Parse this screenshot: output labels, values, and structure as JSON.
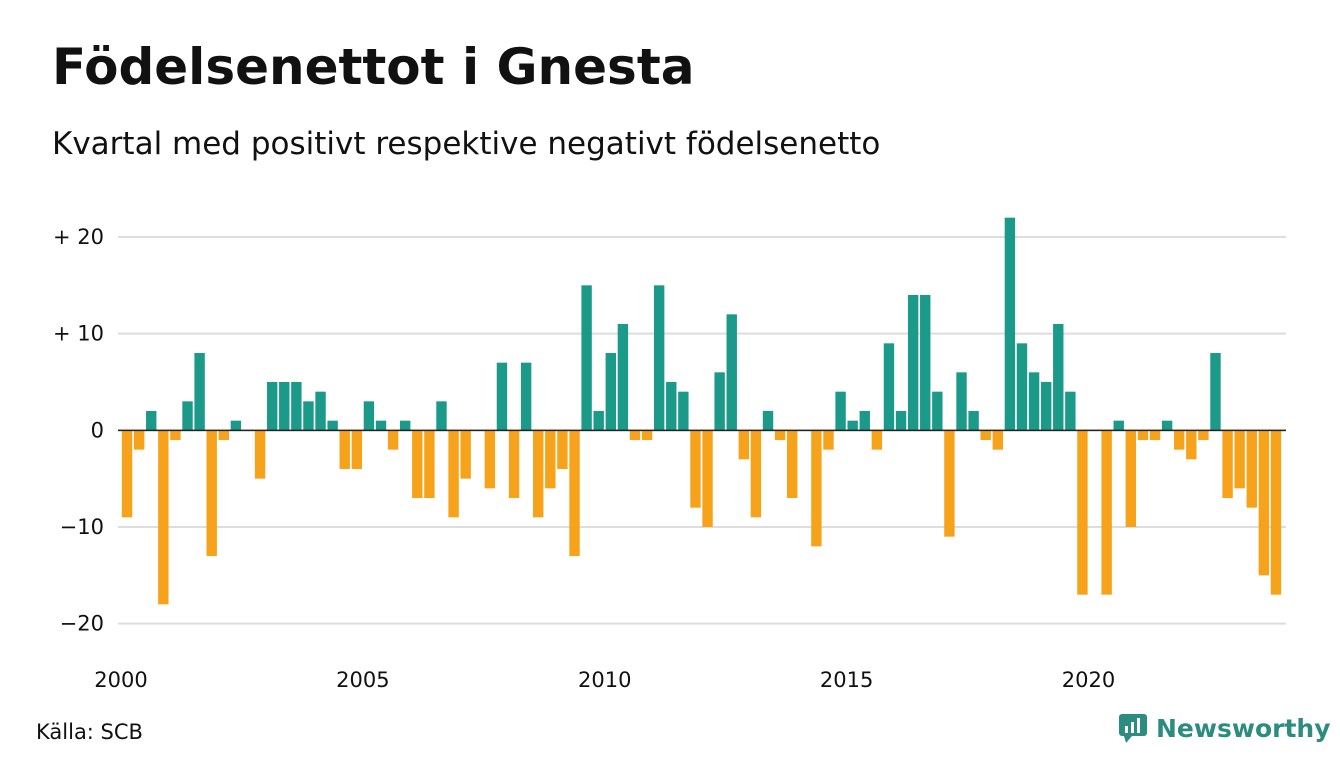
{
  "header": {
    "title": "Födelsenettot i Gnesta",
    "subtitle": "Kvartal med positivt respektive negativt födelsenetto"
  },
  "footer": {
    "source": "Källa: SCB",
    "brand": "Newsworthy"
  },
  "colors": {
    "positive": "#1b9a8a",
    "negative": "#f7a21b",
    "grid": "#dddddd",
    "brand": "#2c8c80"
  },
  "chart_data": {
    "type": "bar",
    "title": "Födelsenettot i Gnesta",
    "subtitle": "Kvartal med positivt respektive negativt födelsenetto",
    "x_start": "2000",
    "periods_per_year": 4,
    "xlim": [
      2000,
      2024
    ],
    "ylim": [
      -22,
      23
    ],
    "y_ticks": [
      {
        "value": 20,
        "label": "+ 20"
      },
      {
        "value": 10,
        "label": "+ 10"
      },
      {
        "value": 0,
        "label": "0"
      },
      {
        "value": -10,
        "label": "−10"
      },
      {
        "value": -20,
        "label": "−20"
      }
    ],
    "x_ticks": [
      {
        "value": 2000,
        "label": "2000"
      },
      {
        "value": 2005,
        "label": "2005"
      },
      {
        "value": 2010,
        "label": "2010"
      },
      {
        "value": 2015,
        "label": "2015"
      },
      {
        "value": 2020,
        "label": "2020"
      }
    ],
    "grid": true,
    "values": [
      -9,
      -2,
      2,
      -18,
      -1,
      3,
      8,
      -13,
      -1,
      1,
      0,
      -5,
      5,
      5,
      5,
      3,
      4,
      1,
      -4,
      -4,
      3,
      1,
      -2,
      1,
      -7,
      -7,
      3,
      -9,
      -5,
      0,
      -6,
      7,
      -7,
      7,
      -9,
      -6,
      -4,
      -13,
      15,
      2,
      8,
      11,
      -1,
      -1,
      15,
      5,
      4,
      -8,
      -10,
      6,
      12,
      -3,
      -9,
      2,
      -1,
      -7,
      0,
      -12,
      -2,
      4,
      1,
      2,
      -2,
      9,
      2,
      14,
      14,
      4,
      -11,
      6,
      2,
      -1,
      -2,
      22,
      9,
      6,
      5,
      11,
      4,
      -17,
      0,
      -17,
      1,
      -10,
      -1,
      -1,
      1,
      -2,
      -3,
      -1,
      8,
      -7,
      -6,
      -8,
      -15,
      -17
    ]
  }
}
